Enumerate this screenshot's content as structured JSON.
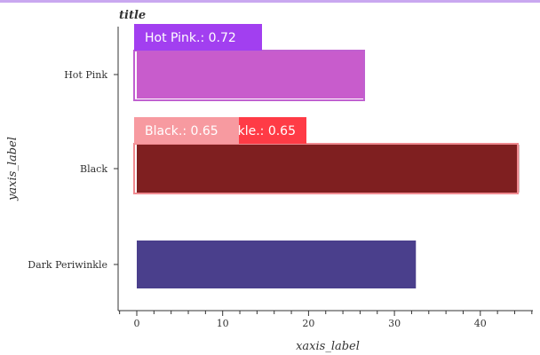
{
  "chart_data": {
    "type": "bar",
    "orientation": "horizontal",
    "title": "title",
    "xlabel": "xaxis_label",
    "ylabel": "yaxis_label",
    "categories": [
      "Dark Periwinkle",
      "Black",
      "Hot Pink"
    ],
    "values": [
      32.5,
      44.5,
      26.5
    ],
    "colors": [
      "#4a3f8c",
      "#7f1f20",
      "#c85ccc"
    ],
    "xlim": [
      0,
      46
    ],
    "xticks": [
      0,
      10,
      20,
      30,
      40
    ],
    "grid": false,
    "annotations": [
      {
        "text": "Hot Pink.: 0.72",
        "category": "Hot Pink",
        "color": "#a23ff0"
      },
      {
        "text": "Dark Periwinkle.: 0.65",
        "category": "Black",
        "color": "#ff3b46"
      },
      {
        "text": "Black.: 0.65",
        "category": "Black",
        "color": "#f79aa0"
      }
    ]
  }
}
